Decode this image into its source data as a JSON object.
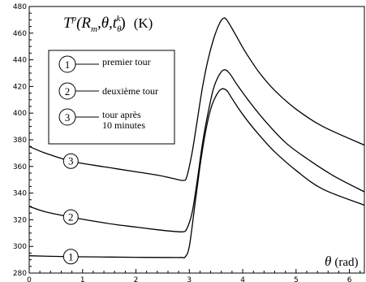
{
  "chart_data": {
    "type": "line",
    "title": "",
    "ylabel_parts": {
      "base": "T",
      "sup": "p",
      "args_open": "(R",
      "sub_m": "m",
      "mid": ",θ,t",
      "sub_theta": "θ",
      "sup_k": "k",
      "args_close": ")",
      "unit": "(K)"
    },
    "xlabel_parts": {
      "symbol": "θ",
      "unit": "(rad)"
    },
    "xlim": [
      0,
      6.28
    ],
    "ylim": [
      280,
      480
    ],
    "xticks": [
      0,
      1,
      2,
      3,
      4,
      5,
      6
    ],
    "yticks": [
      280,
      300,
      320,
      340,
      360,
      380,
      400,
      420,
      440,
      460,
      480
    ],
    "grid": false,
    "legend_placement": "top-left",
    "series": [
      {
        "name": "premier tour",
        "marker": "1",
        "marker_x": 0.78,
        "color": "#000000",
        "points": [
          [
            0,
            293
          ],
          [
            0.5,
            292.5
          ],
          [
            1,
            292.2
          ],
          [
            1.5,
            292
          ],
          [
            2,
            291.8
          ],
          [
            2.5,
            291.7
          ],
          [
            2.85,
            291.7
          ],
          [
            2.92,
            292
          ],
          [
            3.0,
            300
          ],
          [
            3.1,
            330
          ],
          [
            3.2,
            360
          ],
          [
            3.3,
            385
          ],
          [
            3.4,
            403
          ],
          [
            3.5,
            413
          ],
          [
            3.6,
            418
          ],
          [
            3.7,
            417
          ],
          [
            3.8,
            411
          ],
          [
            4.0,
            399
          ],
          [
            4.3,
            384
          ],
          [
            4.6,
            371
          ],
          [
            5.0,
            357
          ],
          [
            5.5,
            343
          ],
          [
            6.28,
            331
          ]
        ]
      },
      {
        "name": "deuxième tour",
        "marker": "2",
        "marker_x": 0.78,
        "color": "#000000",
        "points": [
          [
            0,
            330
          ],
          [
            0.3,
            326
          ],
          [
            0.78,
            322
          ],
          [
            1.2,
            319
          ],
          [
            1.6,
            316.5
          ],
          [
            2,
            314.5
          ],
          [
            2.4,
            312.5
          ],
          [
            2.7,
            311.3
          ],
          [
            2.88,
            311
          ],
          [
            2.95,
            313
          ],
          [
            3.05,
            325
          ],
          [
            3.15,
            350
          ],
          [
            3.25,
            378
          ],
          [
            3.35,
            400
          ],
          [
            3.45,
            418
          ],
          [
            3.55,
            428
          ],
          [
            3.65,
            432.5
          ],
          [
            3.75,
            430
          ],
          [
            3.9,
            421
          ],
          [
            4.1,
            410
          ],
          [
            4.4,
            395
          ],
          [
            4.8,
            378
          ],
          [
            5.2,
            366
          ],
          [
            5.7,
            353
          ],
          [
            6.28,
            341
          ]
        ]
      },
      {
        "name": "tour après\n10 minutes",
        "marker": "3",
        "marker_x": 0.78,
        "color": "#000000",
        "points": [
          [
            0,
            375
          ],
          [
            0.3,
            370
          ],
          [
            0.78,
            364
          ],
          [
            1.2,
            361
          ],
          [
            1.6,
            358.5
          ],
          [
            2,
            356
          ],
          [
            2.4,
            353.5
          ],
          [
            2.7,
            351
          ],
          [
            2.88,
            349.5
          ],
          [
            2.95,
            352
          ],
          [
            3.05,
            370
          ],
          [
            3.15,
            395
          ],
          [
            3.25,
            420
          ],
          [
            3.35,
            440
          ],
          [
            3.45,
            455
          ],
          [
            3.55,
            466
          ],
          [
            3.63,
            471
          ],
          [
            3.7,
            470
          ],
          [
            3.85,
            460
          ],
          [
            4.05,
            446
          ],
          [
            4.3,
            431
          ],
          [
            4.6,
            417
          ],
          [
            5.0,
            403
          ],
          [
            5.5,
            390
          ],
          [
            6.28,
            376
          ]
        ]
      }
    ],
    "legend": [
      {
        "marker": "1",
        "label": "premier tour"
      },
      {
        "marker": "2",
        "label": "deuxième tour"
      },
      {
        "marker": "3",
        "label": "tour après\n10 minutes"
      }
    ]
  }
}
